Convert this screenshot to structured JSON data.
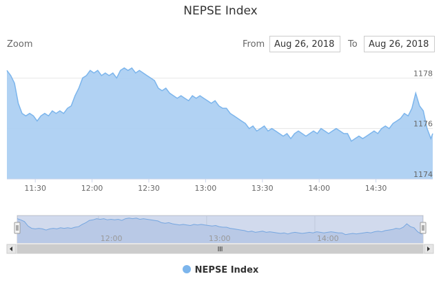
{
  "header": {
    "title": "NEPSE Index"
  },
  "range_selector": {
    "zoom_label": "Zoom",
    "from_label": "From",
    "from_value": "Aug 26, 2018",
    "to_label": "To",
    "to_value": "Aug 26, 2018"
  },
  "legend": {
    "label": "NEPSE Index"
  },
  "colors": {
    "series_line": "#7cb5ec",
    "series_fill": "#a8cdf2",
    "navigator_fill": "#dde7f5"
  },
  "chart_data": {
    "type": "area",
    "title": "NEPSE Index",
    "xlabel": "",
    "ylabel": "",
    "x_range": [
      "11:15",
      "15:00"
    ],
    "ylim": [
      1174,
      1178.5
    ],
    "y_ticks": [
      1174,
      1176,
      1178
    ],
    "y_tick_labels": [
      "1174",
      "1176",
      "1178"
    ],
    "x_ticks": [
      "11:30",
      "12:00",
      "12:30",
      "13:00",
      "13:30",
      "14:00",
      "14:30"
    ],
    "navigator_x_ticks": [
      "12:00",
      "13:00",
      "14:00"
    ],
    "grid": "horizontal",
    "legend_position": "bottom-center",
    "series": [
      {
        "name": "NEPSE Index",
        "points": [
          [
            "11:15",
            1178.3
          ],
          [
            "11:17",
            1178.1
          ],
          [
            "11:19",
            1177.8
          ],
          [
            "11:21",
            1177.0
          ],
          [
            "11:23",
            1176.6
          ],
          [
            "11:25",
            1176.5
          ],
          [
            "11:27",
            1176.6
          ],
          [
            "11:29",
            1176.5
          ],
          [
            "11:31",
            1176.3
          ],
          [
            "11:33",
            1176.5
          ],
          [
            "11:35",
            1176.6
          ],
          [
            "11:37",
            1176.5
          ],
          [
            "11:39",
            1176.7
          ],
          [
            "11:41",
            1176.6
          ],
          [
            "11:43",
            1176.7
          ],
          [
            "11:45",
            1176.6
          ],
          [
            "11:47",
            1176.8
          ],
          [
            "11:49",
            1176.9
          ],
          [
            "11:51",
            1177.3
          ],
          [
            "11:53",
            1177.6
          ],
          [
            "11:55",
            1178.0
          ],
          [
            "11:57",
            1178.1
          ],
          [
            "11:59",
            1178.3
          ],
          [
            "12:01",
            1178.2
          ],
          [
            "12:03",
            1178.3
          ],
          [
            "12:05",
            1178.1
          ],
          [
            "12:07",
            1178.2
          ],
          [
            "12:09",
            1178.1
          ],
          [
            "12:11",
            1178.2
          ],
          [
            "12:13",
            1178.0
          ],
          [
            "12:15",
            1178.3
          ],
          [
            "12:17",
            1178.4
          ],
          [
            "12:19",
            1178.3
          ],
          [
            "12:21",
            1178.4
          ],
          [
            "12:23",
            1178.2
          ],
          [
            "12:25",
            1178.3
          ],
          [
            "12:27",
            1178.2
          ],
          [
            "12:29",
            1178.1
          ],
          [
            "12:31",
            1178.0
          ],
          [
            "12:33",
            1177.9
          ],
          [
            "12:35",
            1177.6
          ],
          [
            "12:37",
            1177.5
          ],
          [
            "12:39",
            1177.6
          ],
          [
            "12:41",
            1177.4
          ],
          [
            "12:43",
            1177.3
          ],
          [
            "12:45",
            1177.2
          ],
          [
            "12:47",
            1177.3
          ],
          [
            "12:49",
            1177.2
          ],
          [
            "12:51",
            1177.1
          ],
          [
            "12:53",
            1177.3
          ],
          [
            "12:55",
            1177.2
          ],
          [
            "12:57",
            1177.3
          ],
          [
            "12:59",
            1177.2
          ],
          [
            "13:01",
            1177.1
          ],
          [
            "13:03",
            1177.0
          ],
          [
            "13:05",
            1177.1
          ],
          [
            "13:07",
            1176.9
          ],
          [
            "13:09",
            1176.8
          ],
          [
            "13:11",
            1176.8
          ],
          [
            "13:13",
            1176.6
          ],
          [
            "13:15",
            1176.5
          ],
          [
            "13:17",
            1176.4
          ],
          [
            "13:19",
            1176.3
          ],
          [
            "13:21",
            1176.2
          ],
          [
            "13:23",
            1176.0
          ],
          [
            "13:25",
            1176.1
          ],
          [
            "13:27",
            1175.9
          ],
          [
            "13:29",
            1176.0
          ],
          [
            "13:31",
            1176.1
          ],
          [
            "13:33",
            1175.9
          ],
          [
            "13:35",
            1176.0
          ],
          [
            "13:37",
            1175.9
          ],
          [
            "13:39",
            1175.8
          ],
          [
            "13:41",
            1175.7
          ],
          [
            "13:43",
            1175.8
          ],
          [
            "13:45",
            1175.6
          ],
          [
            "13:47",
            1175.8
          ],
          [
            "13:49",
            1175.9
          ],
          [
            "13:51",
            1175.8
          ],
          [
            "13:53",
            1175.7
          ],
          [
            "13:55",
            1175.8
          ],
          [
            "13:57",
            1175.9
          ],
          [
            "13:59",
            1175.8
          ],
          [
            "14:01",
            1176.0
          ],
          [
            "14:03",
            1175.9
          ],
          [
            "14:05",
            1175.8
          ],
          [
            "14:07",
            1175.9
          ],
          [
            "14:09",
            1176.0
          ],
          [
            "14:11",
            1175.9
          ],
          [
            "14:13",
            1175.8
          ],
          [
            "14:15",
            1175.8
          ],
          [
            "14:17",
            1175.5
          ],
          [
            "14:19",
            1175.6
          ],
          [
            "14:21",
            1175.7
          ],
          [
            "14:23",
            1175.6
          ],
          [
            "14:25",
            1175.7
          ],
          [
            "14:27",
            1175.8
          ],
          [
            "14:29",
            1175.9
          ],
          [
            "14:31",
            1175.8
          ],
          [
            "14:33",
            1176.0
          ],
          [
            "14:35",
            1176.1
          ],
          [
            "14:37",
            1176.0
          ],
          [
            "14:39",
            1176.2
          ],
          [
            "14:41",
            1176.3
          ],
          [
            "14:43",
            1176.4
          ],
          [
            "14:45",
            1176.6
          ],
          [
            "14:47",
            1176.5
          ],
          [
            "14:49",
            1176.8
          ],
          [
            "14:51",
            1177.4
          ],
          [
            "14:53",
            1176.9
          ],
          [
            "14:55",
            1176.7
          ],
          [
            "14:57",
            1176.0
          ],
          [
            "14:59",
            1175.6
          ],
          [
            "15:00",
            1175.8
          ]
        ]
      }
    ]
  }
}
